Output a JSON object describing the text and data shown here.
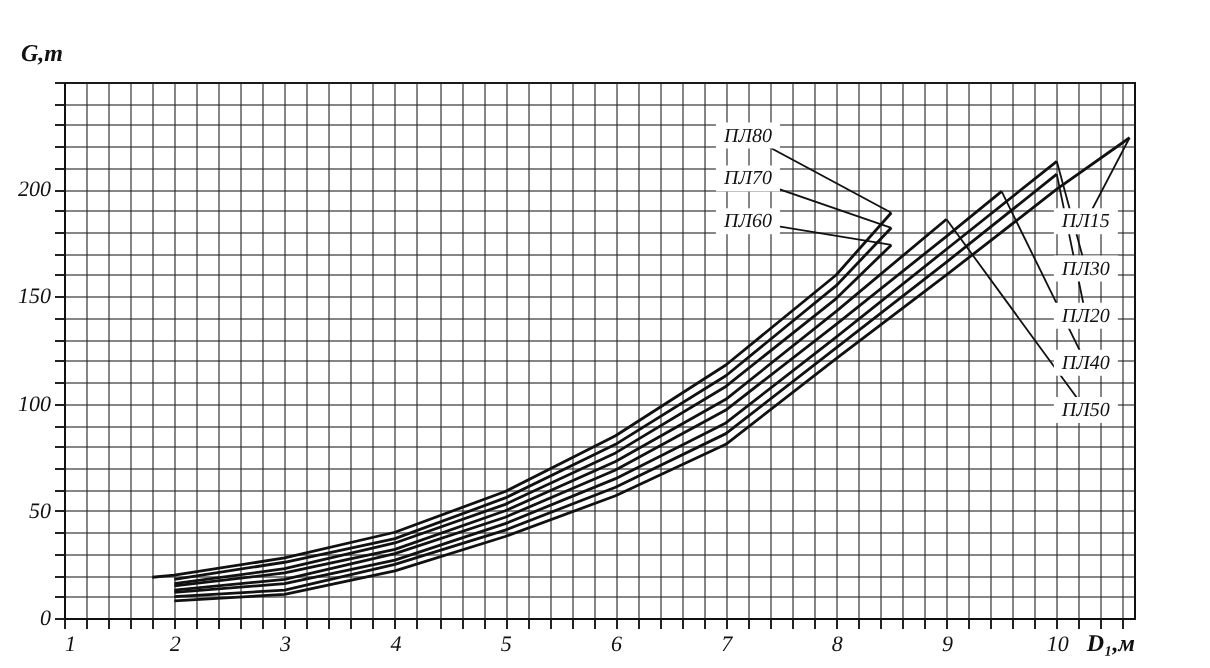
{
  "chart_data": {
    "type": "line",
    "xlabel": "D₁,м",
    "ylabel": "G,т",
    "xlim": [
      1,
      10.7
    ],
    "ylim": [
      0,
      250
    ],
    "xticks": [
      1,
      {
        "value": 1.2,
        "label": null
      },
      {
        "value": 1.4,
        "label": null
      },
      {
        "value": 1.6,
        "label": null
      },
      {
        "value": 1.8,
        "label": null
      },
      2,
      {
        "value": 2.2,
        "label": null
      },
      {
        "value": 2.4,
        "label": null
      },
      {
        "value": 2.6,
        "label": null
      },
      {
        "value": 2.8,
        "label": null
      },
      3,
      {
        "value": 3.2,
        "label": null
      },
      {
        "value": 3.4,
        "label": null
      },
      {
        "value": 3.6,
        "label": null
      },
      {
        "value": 3.8,
        "label": null
      },
      4,
      {
        "value": 4.2,
        "label": null
      },
      {
        "value": 4.4,
        "label": null
      },
      {
        "value": 4.6,
        "label": null
      },
      {
        "value": 4.8,
        "label": null
      },
      5,
      {
        "value": 5.2,
        "label": null
      },
      {
        "value": 5.4,
        "label": null
      },
      {
        "value": 5.6,
        "label": null
      },
      {
        "value": 5.8,
        "label": null
      },
      6,
      {
        "value": 6.2,
        "label": null
      },
      {
        "value": 6.4,
        "label": null
      },
      {
        "value": 6.6,
        "label": null
      },
      {
        "value": 6.8,
        "label": null
      },
      7,
      {
        "value": 7.2,
        "label": null
      },
      {
        "value": 7.4,
        "label": null
      },
      {
        "value": 7.6,
        "label": null
      },
      {
        "value": 7.8,
        "label": null
      },
      8,
      {
        "value": 8.2,
        "label": null
      },
      {
        "value": 8.4,
        "label": null
      },
      {
        "value": 8.6,
        "label": null
      },
      {
        "value": 8.8,
        "label": null
      },
      9,
      {
        "value": 9.2,
        "label": null
      },
      {
        "value": 9.4,
        "label": null
      },
      {
        "value": 9.6,
        "label": null
      },
      {
        "value": 9.8,
        "label": null
      },
      10,
      {
        "value": 10.2,
        "label": null
      },
      {
        "value": 10.4,
        "label": null
      },
      {
        "value": 10.6,
        "label": null
      }
    ],
    "yticks": [
      0,
      {
        "value": 10,
        "label": null
      },
      {
        "value": 20,
        "label": null
      },
      {
        "value": 30,
        "label": null
      },
      {
        "value": 40,
        "label": null
      },
      50,
      {
        "value": 60,
        "label": null
      },
      {
        "value": 70,
        "label": null
      },
      {
        "value": 80,
        "label": null
      },
      {
        "value": 90,
        "label": null
      },
      100,
      {
        "value": 110,
        "label": null
      },
      {
        "value": 120,
        "label": null
      },
      {
        "value": 130,
        "label": null
      },
      {
        "value": 140,
        "label": null
      },
      150,
      {
        "value": 160,
        "label": null
      },
      {
        "value": 170,
        "label": null
      },
      {
        "value": 180,
        "label": null
      },
      {
        "value": 190,
        "label": null
      },
      200,
      {
        "value": 210,
        "label": null
      },
      {
        "value": 220,
        "label": null
      },
      {
        "value": 230,
        "label": null
      },
      {
        "value": 240,
        "label": null
      },
      {
        "value": 250,
        "label": null
      }
    ],
    "grid": true,
    "marker": "none",
    "line_style": "solid",
    "legend": false,
    "series": [
      {
        "name": "ПЛ15",
        "color": "#111111",
        "x": [
          2,
          3,
          4,
          5,
          6,
          7,
          8,
          9,
          10,
          10.66
        ],
        "values": [
          8,
          11,
          22,
          38,
          57,
          81,
          121,
          160,
          200,
          224
        ]
      },
      {
        "name": "ПЛ20",
        "color": "#111111",
        "x": [
          2,
          3,
          4,
          5,
          6,
          7,
          8,
          9,
          10
        ],
        "values": [
          10,
          13,
          25,
          41,
          61,
          86,
          126,
          166,
          207
        ]
      },
      {
        "name": "ПЛ30",
        "color": "#111111",
        "x": [
          2,
          3,
          4,
          5,
          6,
          7,
          8,
          9,
          10
        ],
        "values": [
          12,
          16,
          27,
          44,
          65,
          91,
          131,
          172,
          213
        ]
      },
      {
        "name": "ПЛ40",
        "color": "#111111",
        "x": [
          2,
          3,
          4,
          5,
          6,
          7,
          8,
          9,
          9.5
        ],
        "values": [
          13,
          18,
          30,
          47,
          69,
          97,
          137,
          178,
          199
        ]
      },
      {
        "name": "ПЛ50",
        "color": "#111111",
        "x": [
          2,
          3,
          4,
          5,
          6,
          7,
          8,
          9
        ],
        "values": [
          15,
          21,
          32,
          50,
          73,
          102,
          143,
          186
        ]
      },
      {
        "name": "ПЛ60",
        "color": "#111111",
        "x": [
          2,
          3,
          4,
          5,
          6,
          7,
          8,
          8.5
        ],
        "values": [
          16,
          23,
          35,
          53,
          77,
          108,
          149,
          174
        ]
      },
      {
        "name": "ПЛ70",
        "color": "#111111",
        "x": [
          2,
          3,
          4,
          5,
          6,
          7,
          8,
          8.5
        ],
        "values": [
          18,
          26,
          37,
          56,
          81,
          113,
          155,
          182
        ]
      },
      {
        "name": "ПЛ80",
        "color": "#111111",
        "x": [
          1.8,
          2,
          3,
          4,
          5,
          6,
          7,
          8,
          8.5
        ],
        "values": [
          19,
          20,
          28,
          40,
          59,
          85,
          118,
          160,
          189
        ]
      }
    ]
  }
}
